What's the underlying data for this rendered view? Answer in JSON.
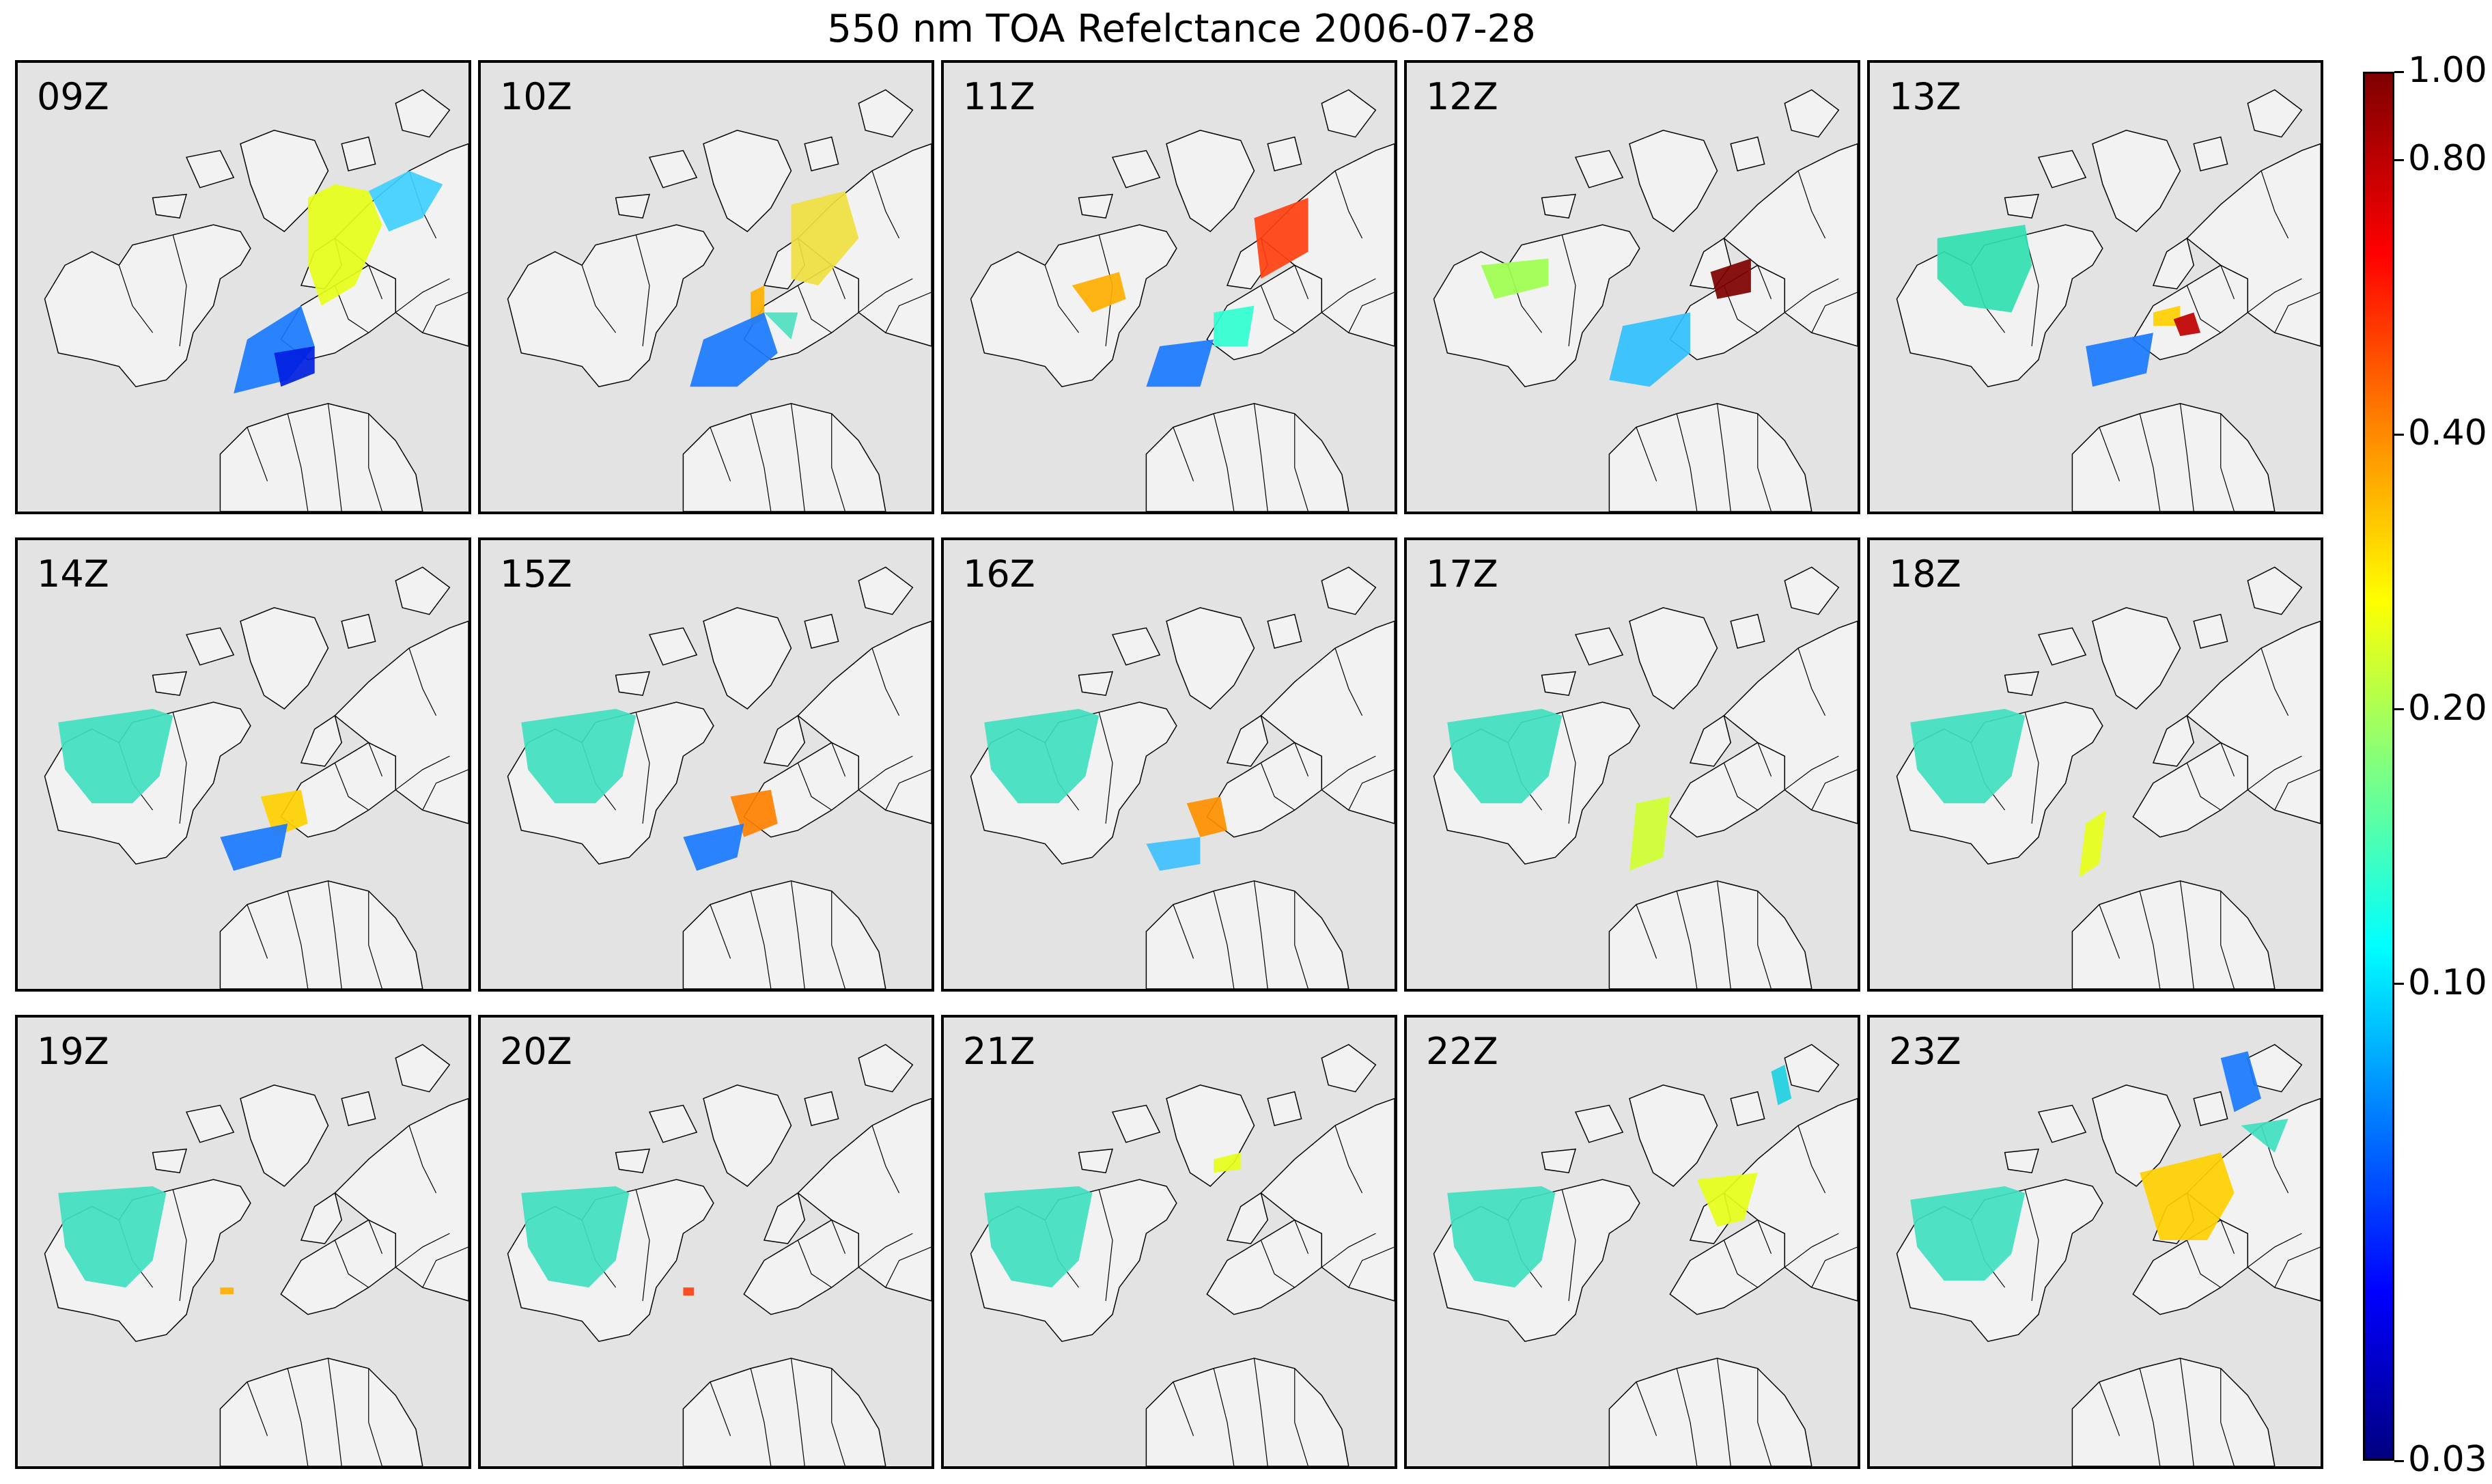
{
  "title": "550 nm TOA Refelctance 2006-07-28",
  "panels": [
    {
      "label": "09Z"
    },
    {
      "label": "10Z"
    },
    {
      "label": "11Z"
    },
    {
      "label": "12Z"
    },
    {
      "label": "13Z"
    },
    {
      "label": "14Z"
    },
    {
      "label": "15Z"
    },
    {
      "label": "16Z"
    },
    {
      "label": "17Z"
    },
    {
      "label": "18Z"
    },
    {
      "label": "19Z"
    },
    {
      "label": "20Z"
    },
    {
      "label": "21Z"
    },
    {
      "label": "22Z"
    },
    {
      "label": "23Z"
    }
  ],
  "colorbar": {
    "ticks": [
      "1.00",
      "0.80",
      "0.40",
      "0.20",
      "0.10",
      "0.03"
    ],
    "colormap": [
      "#00007f",
      "#0000ff",
      "#0080ff",
      "#00ffff",
      "#80ff80",
      "#ffff00",
      "#ff8000",
      "#ff0000",
      "#7f0000"
    ]
  },
  "colors": {
    "ocean": "#e3e3e3",
    "land": "#f2f2f2",
    "coast": "#000000"
  }
}
